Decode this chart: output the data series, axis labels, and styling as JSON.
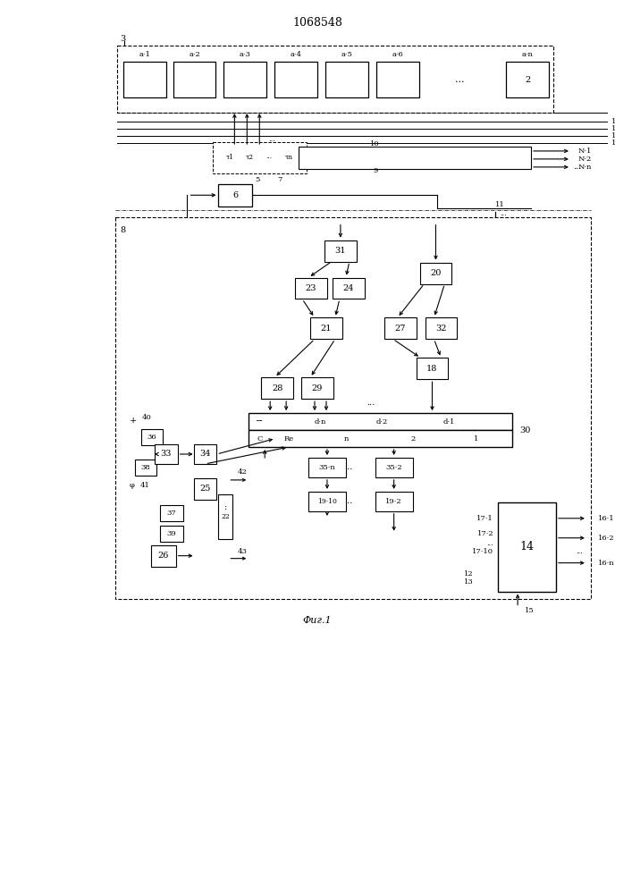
{
  "title": "1068548",
  "fig_label": "Фиг.1",
  "bg": "#ffffff",
  "lc": "#000000",
  "bath_labels": [
    "a·1",
    "a·2",
    "a·3",
    "a·4",
    "a·5",
    "a·6",
    "a·n"
  ],
  "outputs_N": [
    "N·1",
    "N·2",
    "N·n"
  ],
  "outputs_16": [
    "16·1",
    "16·2",
    "16·n"
  ],
  "inputs_17": [
    "17·1",
    "17·2",
    "17·10"
  ]
}
